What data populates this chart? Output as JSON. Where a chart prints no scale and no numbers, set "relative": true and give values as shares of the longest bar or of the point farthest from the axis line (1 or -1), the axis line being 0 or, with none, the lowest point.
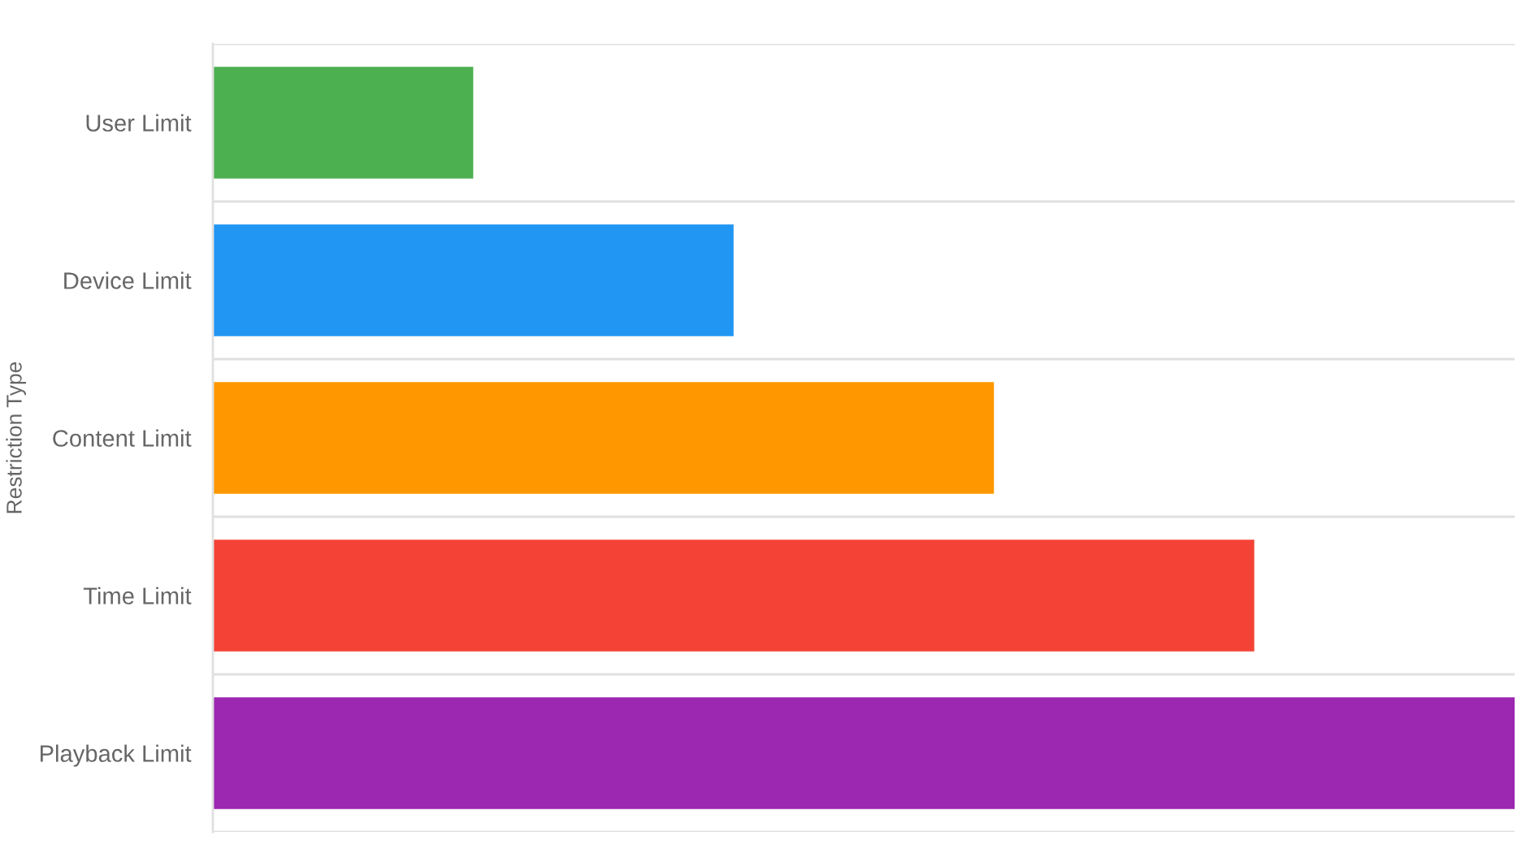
{
  "chart_data": {
    "type": "bar",
    "orientation": "horizontal",
    "relative": true,
    "ylabel": "Restriction Type",
    "categories": [
      "User Limit",
      "Device Limit",
      "Content Limit",
      "Time Limit",
      "Playback Limit"
    ],
    "values": [
      0.2,
      0.4,
      0.6,
      0.8,
      1
    ],
    "colors": [
      "#4caf50",
      "#2196f3",
      "#ff9800",
      "#f44336",
      "#9c27b0"
    ],
    "grid": "y",
    "tick_labels": "y"
  }
}
